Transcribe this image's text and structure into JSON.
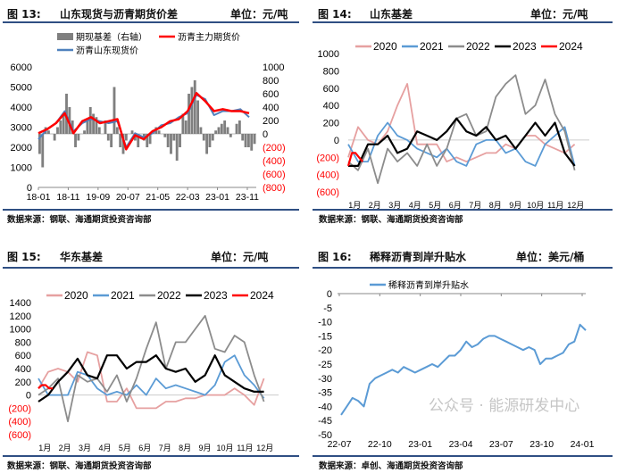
{
  "panels": [
    {
      "fig": "图 13:",
      "title": "山东现货与沥青期货价差",
      "unit": "单位：元/吨",
      "source": "数据来源：钢联、海通期货投资咨询部"
    },
    {
      "fig": "图 14:",
      "title": "山东基差",
      "unit": "单位：元/吨",
      "source": "数据来源：钢联、海通期货投资咨询部"
    },
    {
      "fig": "图 15:",
      "title": "华东基差",
      "unit": "单位：元/吨",
      "source": "数据来源：钢联、海通期货投资咨询部"
    },
    {
      "fig": "图 16:",
      "title": "稀释沥青到岸升贴水",
      "unit": "单位：美元/桶",
      "source": "数据来源：卓创、海通期货投资咨询部"
    }
  ],
  "watermark": "公众号 · 能源研发中心",
  "chart_data": [
    {
      "type": "line+bar",
      "title": "山东现货与沥青期货价差",
      "xticks": [
        "18-01",
        "18-11",
        "19-09",
        "20-07",
        "21-05",
        "22-03",
        "23-01",
        "23-11"
      ],
      "yticks_left": [
        "0",
        "1000",
        "2000",
        "3000",
        "4000",
        "5000",
        "6000"
      ],
      "ylim_left": [
        0,
        6000
      ],
      "yticks_right": [
        "(800)",
        "(600)",
        "(400)",
        "(200)",
        "0",
        "200",
        "400",
        "600",
        "800",
        "1000"
      ],
      "ylim_right": [
        -800,
        1000
      ],
      "series": [
        {
          "name": "期现基差（右轴）",
          "color": "#7f7f7f",
          "axis": "right",
          "kind": "bar",
          "values": [
            -300,
            -500,
            100,
            50,
            0,
            -100,
            100,
            200,
            300,
            600,
            400,
            200,
            -200,
            -100,
            0,
            50,
            200,
            400,
            300,
            250,
            100,
            0,
            200,
            -100,
            -200,
            700,
            100,
            -200,
            -300,
            -100,
            0,
            50,
            -100,
            -200,
            0,
            -100,
            -200,
            -150,
            50,
            100,
            50,
            0,
            -50,
            -200,
            -300,
            -100,
            -400,
            -200,
            300,
            200,
            600,
            700,
            800,
            500,
            100,
            -100,
            -300,
            -200,
            -100,
            50,
            100,
            150,
            200,
            100,
            -50,
            0,
            150,
            200,
            -100,
            -200,
            -200,
            -250,
            -150
          ]
        },
        {
          "name": "沥青主力期货价",
          "color": "#ff0000",
          "axis": "left",
          "kind": "line",
          "values": [
            2700,
            2900,
            3200,
            3700,
            2700,
            3300,
            3500,
            3200,
            3300,
            3400,
            1900,
            2600,
            2400,
            2800,
            3000,
            3300,
            3400,
            3800,
            4700,
            4300,
            3800,
            3900,
            3800,
            3800,
            3700
          ]
        },
        {
          "name": "沥青山东现货价",
          "color": "#4f81bd",
          "axis": "left",
          "kind": "line",
          "values": [
            2400,
            2900,
            3200,
            3800,
            2800,
            3200,
            3400,
            3300,
            3200,
            3300,
            2000,
            2700,
            2500,
            2700,
            3100,
            3200,
            3500,
            3700,
            4600,
            4400,
            3600,
            3800,
            3800,
            3900,
            3500
          ]
        }
      ]
    },
    {
      "type": "line",
      "title": "山东基差",
      "xticks": [
        "1月",
        "2月",
        "3月",
        "4月",
        "5月",
        "6月",
        "7月",
        "8月",
        "9月",
        "10月",
        "11月",
        "12月"
      ],
      "yticks": [
        "(600)",
        "(400)",
        "(200)",
        "0",
        "200",
        "400",
        "600",
        "800",
        "1000"
      ],
      "ylim": [
        -600,
        1000
      ],
      "series": [
        {
          "name": "2020",
          "color": "#e6a0a0",
          "values": [
            -200,
            150,
            0,
            -50,
            100,
            400,
            650,
            -50,
            -50,
            -50,
            -250,
            -200,
            -250,
            -200,
            -150,
            -150,
            -50,
            -100,
            50,
            50,
            -50,
            -100,
            -150,
            -50
          ]
        },
        {
          "name": "2021",
          "color": "#5b9bd5",
          "values": [
            -50,
            -250,
            -250,
            50,
            200,
            50,
            0,
            -100,
            -150,
            -200,
            -100,
            -250,
            -300,
            -50,
            0,
            0,
            -150,
            -100,
            -250,
            -300,
            -50,
            50,
            150,
            -300
          ]
        },
        {
          "name": "2022",
          "color": "#8c8c8c",
          "values": [
            -250,
            -350,
            -100,
            -500,
            -100,
            -250,
            -150,
            -300,
            -50,
            -300,
            -100,
            250,
            300,
            50,
            100,
            500,
            650,
            750,
            300,
            400,
            700,
            300,
            100,
            -350
          ]
        },
        {
          "name": "2023",
          "color": "#000000",
          "values": [
            -300,
            -300,
            -50,
            -50,
            50,
            -150,
            -100,
            100,
            50,
            0,
            100,
            250,
            100,
            50,
            150,
            0,
            50,
            -100,
            50,
            200,
            50,
            200,
            -150,
            -300
          ]
        },
        {
          "name": "2024",
          "color": "#ff0000",
          "values": [
            -300,
            -150,
            -150,
            -200,
            -250
          ]
        }
      ]
    },
    {
      "type": "line",
      "title": "华东基差",
      "xticks": [
        "1月",
        "2月",
        "3月",
        "4月",
        "5月",
        "6月",
        "7月",
        "8月",
        "9月",
        "10月",
        "11月",
        "12月"
      ],
      "yticks": [
        "(600)",
        "(400)",
        "(200)",
        "0",
        "200",
        "400",
        "600",
        "800",
        "1000",
        "1200",
        "1400"
      ],
      "ylim": [
        -600,
        1400
      ],
      "series": [
        {
          "name": "2020",
          "color": "#e6a0a0",
          "values": [
            100,
            350,
            400,
            350,
            200,
            650,
            600,
            -100,
            -100,
            100,
            -200,
            -200,
            -200,
            -100,
            -100,
            -50,
            -50,
            0,
            0,
            0,
            100,
            0,
            -150,
            250
          ]
        },
        {
          "name": "2021",
          "color": "#5b9bd5",
          "values": [
            250,
            0,
            0,
            0,
            350,
            300,
            100,
            0,
            50,
            0,
            150,
            0,
            250,
            100,
            150,
            100,
            50,
            0,
            150,
            500,
            600,
            300,
            150,
            -50
          ]
        },
        {
          "name": "2022",
          "color": "#8c8c8c",
          "values": [
            0,
            100,
            250,
            -400,
            300,
            200,
            250,
            50,
            300,
            -100,
            250,
            700,
            1100,
            400,
            800,
            800,
            1000,
            1200,
            700,
            650,
            900,
            800,
            300,
            -100
          ]
        },
        {
          "name": "2023",
          "color": "#000000",
          "values": [
            -100,
            0,
            200,
            350,
            550,
            300,
            250,
            600,
            600,
            400,
            500,
            500,
            600,
            400,
            350,
            400,
            200,
            300,
            600,
            300,
            200,
            100,
            50,
            50
          ]
        },
        {
          "name": "2024",
          "color": "#ff0000",
          "values": [
            100,
            150,
            150,
            100,
            100
          ]
        }
      ]
    },
    {
      "type": "line",
      "title": "稀释沥青到岸升贴水",
      "xticks": [
        "22-07",
        "22-10",
        "23-01",
        "23-04",
        "23-07",
        "23-10",
        "24-01"
      ],
      "yticks": [
        "-50",
        "-45",
        "-40",
        "-35",
        "-30",
        "-25",
        "-20",
        "-15",
        "-10",
        "-5",
        "0"
      ],
      "ylim": [
        -50,
        0
      ],
      "series": [
        {
          "name": "稀释沥青到岸升贴水",
          "color": "#5b9bd5",
          "values": [
            -43,
            -40,
            -37,
            -38,
            -40,
            -32,
            -30,
            -29,
            -28,
            -27,
            -28,
            -26,
            -27,
            -28,
            -27,
            -26,
            -25,
            -26,
            -24,
            -22,
            -22,
            -20,
            -17,
            -19,
            -18,
            -16,
            -15,
            -15,
            -16,
            -17,
            -18,
            -19,
            -20,
            -19,
            -20,
            -25,
            -23,
            -23,
            -22,
            -21,
            -18,
            -17,
            -11,
            -13
          ]
        }
      ]
    }
  ]
}
